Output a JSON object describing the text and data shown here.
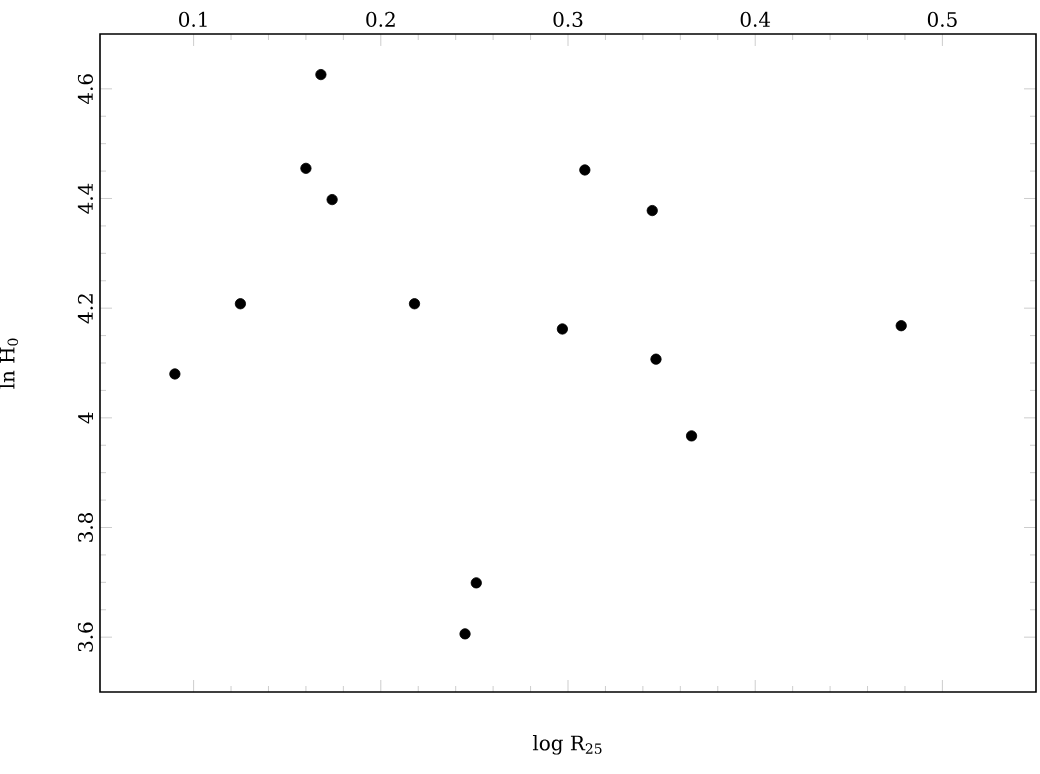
{
  "chart_data": {
    "type": "scatter",
    "xlabel": "log R$_{25}$",
    "ylabel": "ln H$_{0}$",
    "xlim": [
      0.05,
      0.55
    ],
    "xticks": [
      0.1,
      0.2,
      0.3,
      0.4,
      0.5
    ],
    "ylim": [
      3.5,
      4.7
    ],
    "yticks": [
      3.6,
      3.8,
      4,
      4.2,
      4.4,
      4.6
    ],
    "marker": "circle",
    "grid": false,
    "series": [
      {
        "color": "#000000",
        "x": [
          0.168,
          0.16,
          0.174,
          0.309,
          0.345,
          0.09,
          0.125,
          0.218,
          0.297,
          0.347,
          0.366,
          0.478,
          0.251,
          0.245
        ],
        "values": [
          4.626,
          4.455,
          4.398,
          4.452,
          4.378,
          4.08,
          4.208,
          4.208,
          4.162,
          4.107,
          3.967,
          4.168,
          3.699,
          3.606
        ]
      }
    ]
  }
}
